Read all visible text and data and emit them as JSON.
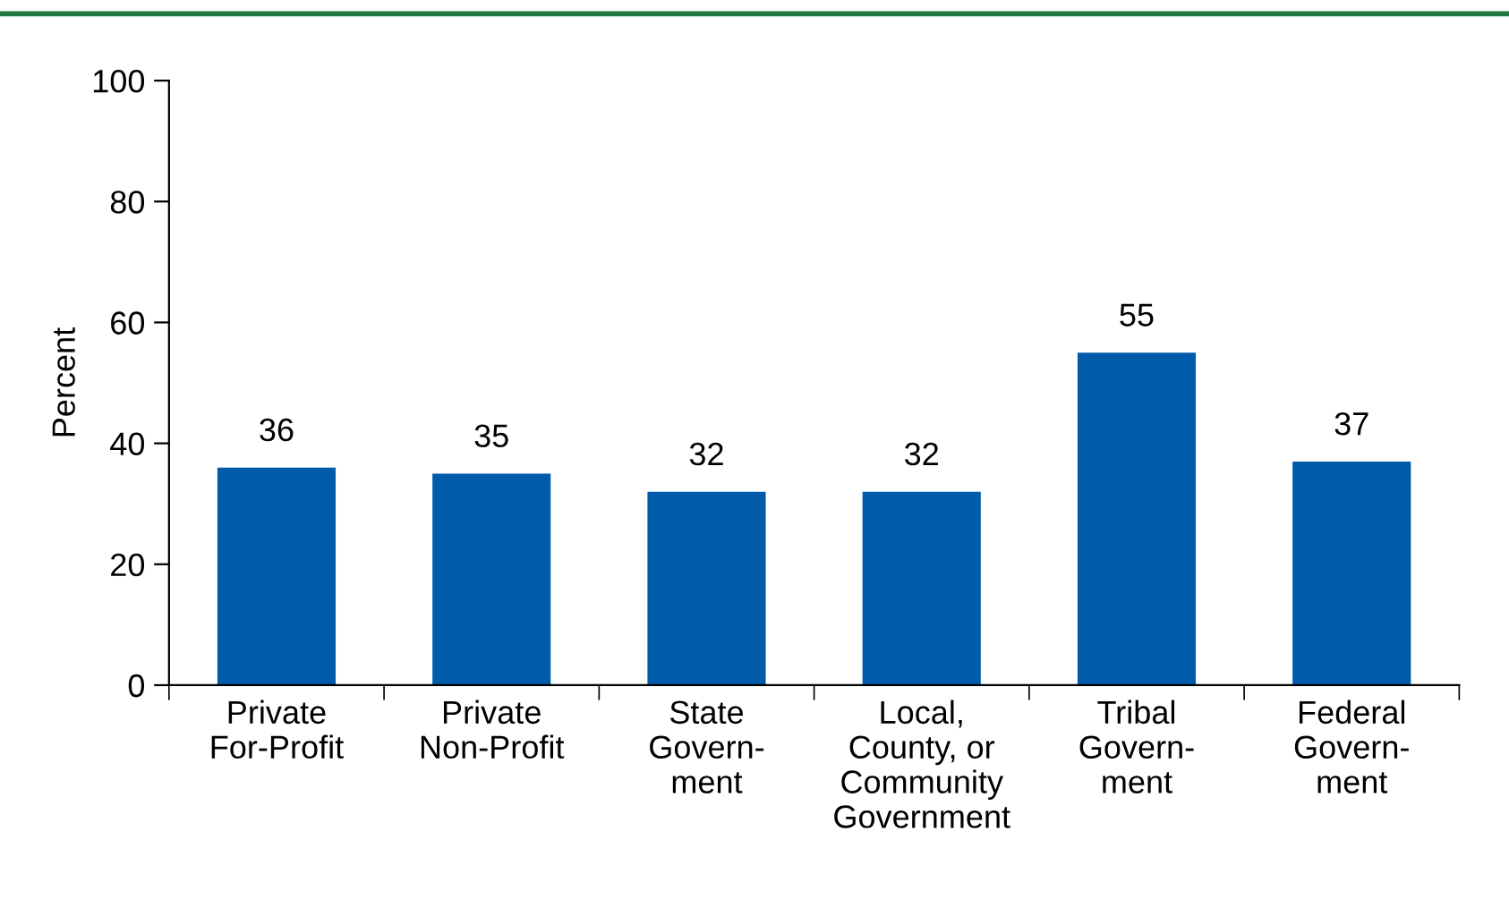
{
  "chart_data": {
    "type": "bar",
    "ylabel": "Percent",
    "categories": [
      "Private\nFor-Profit",
      "Private\nNon-Profit",
      "State\nGovern-\nment",
      "Local,\nCounty, or\nCommunity\nGovernment",
      "Tribal\nGovern-\nment",
      "Federal\nGovern-\nment"
    ],
    "values": [
      36,
      35,
      32,
      32,
      55,
      37
    ],
    "color": "#005bab",
    "ylim": [
      0,
      100
    ],
    "yticks": [
      0,
      20,
      40,
      60,
      80,
      100
    ],
    "data_labels": true,
    "grid": false
  }
}
